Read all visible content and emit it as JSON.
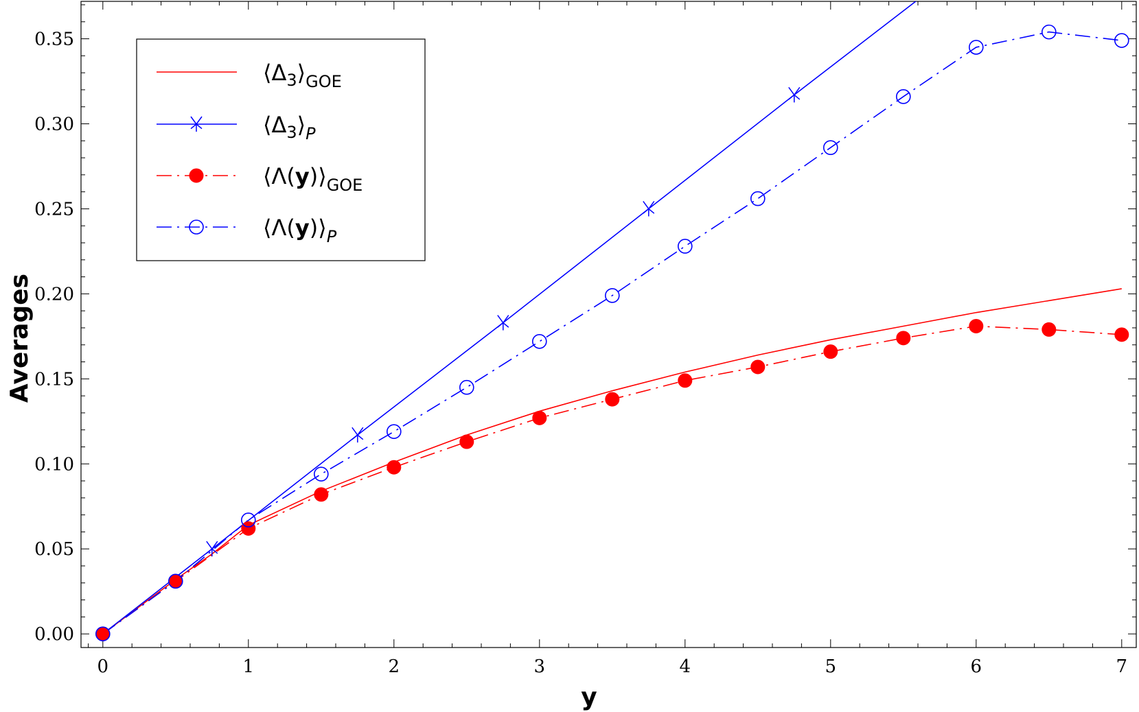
{
  "chart_data": {
    "type": "line",
    "xlabel": "y",
    "ylabel": "Averages",
    "xlim": [
      -0.15,
      7.1
    ],
    "ylim": [
      -0.008,
      0.372
    ],
    "xticks": [
      0,
      1,
      2,
      3,
      4,
      5,
      6,
      7
    ],
    "xtick_labels": [
      "0",
      "1",
      "2",
      "3",
      "4",
      "5",
      "6",
      "7"
    ],
    "yticks": [
      0.0,
      0.05,
      0.1,
      0.15,
      0.2,
      0.25,
      0.3,
      0.35
    ],
    "ytick_labels": [
      "0.00",
      "0.05",
      "0.10",
      "0.15",
      "0.20",
      "0.25",
      "0.30",
      "0.35"
    ],
    "grid": false,
    "legend_position": "top-left",
    "series": [
      {
        "name": "⟨Δ3⟩GOE",
        "legend_main": "⟨Δ",
        "legend_sub1": "3",
        "legend_close": "⟩",
        "legend_sub2": "GOE",
        "color": "#ff0000",
        "line": "solid",
        "marker": "none",
        "x": [
          0,
          0.25,
          0.5,
          0.75,
          1,
          1.5,
          2,
          2.5,
          3,
          3.5,
          4,
          4.5,
          5,
          5.5,
          6,
          6.5,
          7
        ],
        "y": [
          0,
          0.016,
          0.032,
          0.047,
          0.064,
          0.084,
          0.101,
          0.117,
          0.131,
          0.143,
          0.154,
          0.164,
          0.173,
          0.181,
          0.189,
          0.196,
          0.203
        ]
      },
      {
        "name": "⟨Δ3⟩P",
        "legend_main": "⟨Δ",
        "legend_sub1": "3",
        "legend_close": "⟩",
        "legend_sub2": "P",
        "color": "#0000ff",
        "line": "solid",
        "marker": "x",
        "x": [
          0,
          0.75,
          1.75,
          2.75,
          3.75,
          4.75,
          5.6
        ],
        "y": [
          0,
          0.05,
          0.117,
          0.183,
          0.25,
          0.317,
          0.373
        ],
        "marker_x": [
          0.75,
          1.75,
          2.75,
          3.75,
          4.75
        ],
        "marker_y": [
          0.05,
          0.117,
          0.183,
          0.25,
          0.317
        ]
      },
      {
        "name": "⟨Λ(y)⟩GOE",
        "legend_main": "⟨Λ(",
        "legend_bold": "y",
        "legend_close": ")⟩",
        "legend_sub2": "GOE",
        "color": "#ff0000",
        "line": "dashdot",
        "marker": "filled-circle",
        "x": [
          0,
          0.5,
          1,
          1.5,
          2,
          2.5,
          3,
          3.5,
          4,
          4.5,
          5,
          5.5,
          6,
          6.5,
          7
        ],
        "y": [
          0,
          0.031,
          0.062,
          0.082,
          0.098,
          0.113,
          0.127,
          0.138,
          0.149,
          0.157,
          0.166,
          0.174,
          0.181,
          0.179,
          0.176
        ]
      },
      {
        "name": "⟨Λ(y)⟩P",
        "legend_main": "⟨Λ(",
        "legend_bold": "y",
        "legend_close": ")⟩",
        "legend_sub2": "P",
        "color": "#0000ff",
        "line": "dashdot",
        "marker": "open-circle",
        "x": [
          0,
          0.5,
          1,
          1.5,
          2,
          2.5,
          3,
          3.5,
          4,
          4.5,
          5,
          5.5,
          6,
          6.5,
          7
        ],
        "y": [
          0,
          0.031,
          0.067,
          0.094,
          0.119,
          0.145,
          0.172,
          0.199,
          0.228,
          0.256,
          0.286,
          0.316,
          0.345,
          0.354,
          0.349
        ]
      }
    ]
  }
}
